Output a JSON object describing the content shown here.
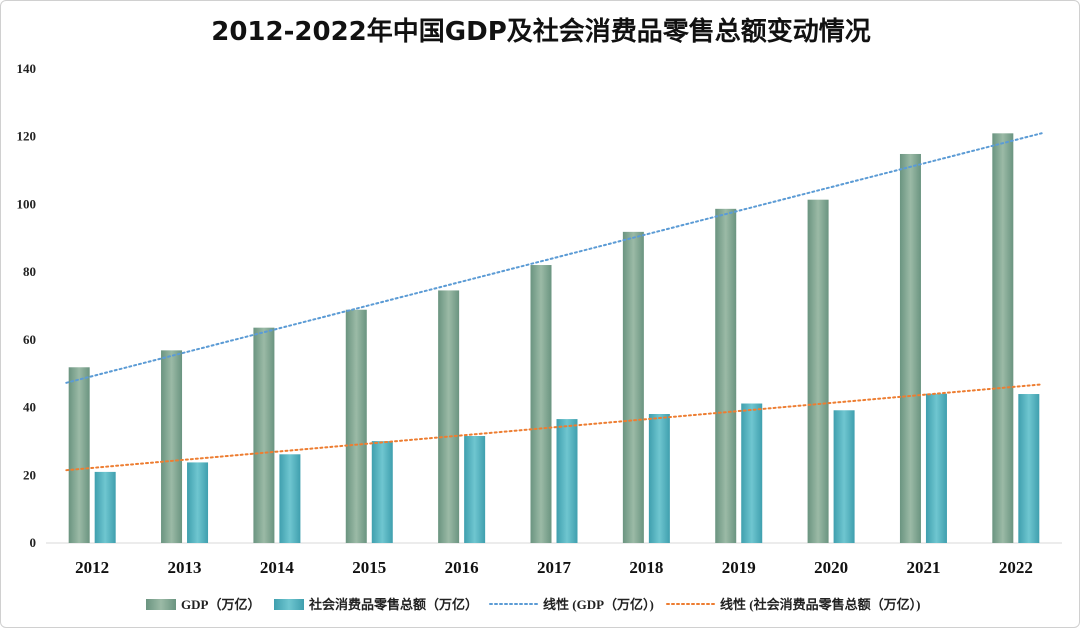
{
  "chart_data": {
    "type": "bar",
    "title": "2012-2022年中国GDP及社会消费品零售总额变动情况",
    "categories": [
      "2012",
      "2013",
      "2014",
      "2015",
      "2016",
      "2017",
      "2018",
      "2019",
      "2020",
      "2021",
      "2022"
    ],
    "series": [
      {
        "name": "GDP（万亿）",
        "values": [
          51.9,
          56.9,
          63.6,
          68.9,
          74.6,
          82.1,
          91.9,
          98.7,
          101.4,
          114.9,
          121.0
        ],
        "color": "#7fa68e",
        "color_dark": "#6a9480",
        "color_light": "#9bbaa6"
      },
      {
        "name": "社会消费品零售总额（万亿）",
        "values": [
          21.0,
          23.8,
          26.2,
          30.1,
          31.6,
          36.6,
          38.1,
          41.2,
          39.2,
          44.1,
          44.0
        ],
        "color": "#4fb1be",
        "color_dark": "#3f9fae",
        "color_light": "#6fc6d0"
      }
    ],
    "trendlines": [
      {
        "name": "线性 (GDP（万亿）)",
        "of_series": 0,
        "color": "#5b9bd5"
      },
      {
        "name": "线性 (社会消费品零售总额（万亿）)",
        "of_series": 1,
        "color": "#ed7d31"
      }
    ],
    "ylim": [
      0,
      140
    ],
    "yticks": [
      0,
      20,
      40,
      60,
      80,
      100,
      120,
      140
    ],
    "legend": "bottom",
    "grid": false
  }
}
